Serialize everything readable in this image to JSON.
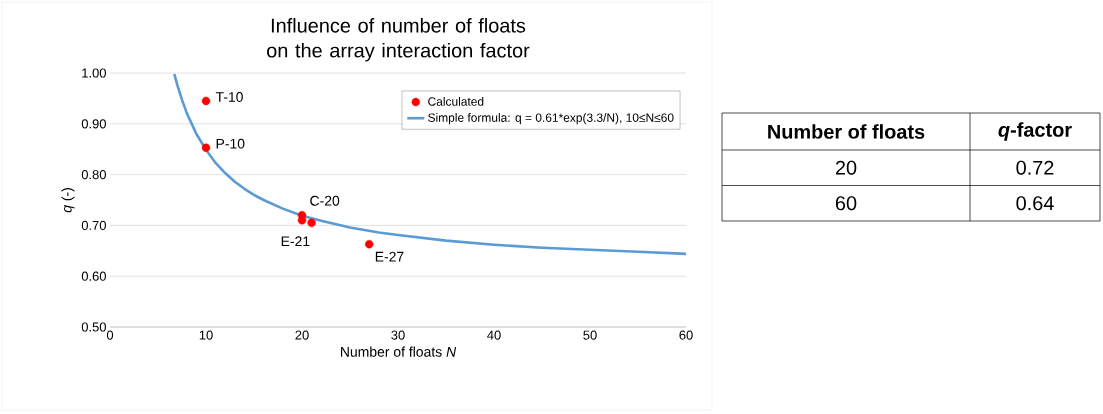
{
  "chart_data": [
    {
      "type": "scatter",
      "title": "Influence of number of floats on the array interaction factor",
      "xlabel": "Number of floats *N*",
      "ylabel": "*q* (-)",
      "xlim": [
        0,
        60
      ],
      "xticks": [
        0,
        10,
        20,
        30,
        40,
        50,
        60
      ],
      "ylim": [
        0.5,
        1.0
      ],
      "yticks": [
        {
          "value": 0.5,
          "label": "0.50"
        },
        {
          "value": 0.6,
          "label": "0.60"
        },
        {
          "value": 0.7,
          "label": "0.70"
        },
        {
          "value": 0.8,
          "label": "0.80"
        },
        {
          "value": 0.9,
          "label": "0.90"
        },
        {
          "value": 1.0,
          "label": "1.00"
        }
      ],
      "grid": "y",
      "legend": "top right",
      "series": [
        {
          "name": "Calculated",
          "type": "scatter",
          "marker": "circle",
          "color": "#ff0000",
          "x": [
            10,
            10,
            20,
            20,
            21,
            27
          ],
          "values": [
            0.945,
            0.853,
            0.72,
            0.71,
            0.705,
            0.663
          ]
        },
        {
          "name": "Simple formula: q = 0.61*exp(3.3/N),  10≤N≤60",
          "type": "line",
          "marker": "none",
          "color": "#5b9bd5",
          "x": [
            6.7,
            7,
            7.5,
            8,
            9,
            10,
            11,
            12,
            13,
            14,
            15,
            16,
            18,
            20,
            22,
            25,
            28,
            30,
            35,
            40,
            45,
            50,
            55,
            60
          ],
          "values": [
            0.998,
            0.977,
            0.947,
            0.921,
            0.88,
            0.849,
            0.823,
            0.803,
            0.786,
            0.772,
            0.76,
            0.75,
            0.733,
            0.719,
            0.709,
            0.696,
            0.686,
            0.681,
            0.67,
            0.662,
            0.656,
            0.652,
            0.648,
            0.644
          ]
        }
      ],
      "annotations": [
        {
          "text": "T-10",
          "x": 10,
          "y": 0.945
        },
        {
          "text": "P-10",
          "x": 10,
          "y": 0.853
        },
        {
          "text": "C-20",
          "x": 20,
          "y": 0.72
        },
        {
          "text": "E-21",
          "x": 21,
          "y": 0.705
        },
        {
          "text": "E-27",
          "x": 27,
          "y": 0.663
        }
      ]
    },
    {
      "type": "other",
      "xlabel": "Number of floats",
      "ylabel": "*q*-factor",
      "categories": [
        "20",
        "60"
      ],
      "values": [
        0.72,
        0.64
      ],
      "data_labels": true
    }
  ]
}
